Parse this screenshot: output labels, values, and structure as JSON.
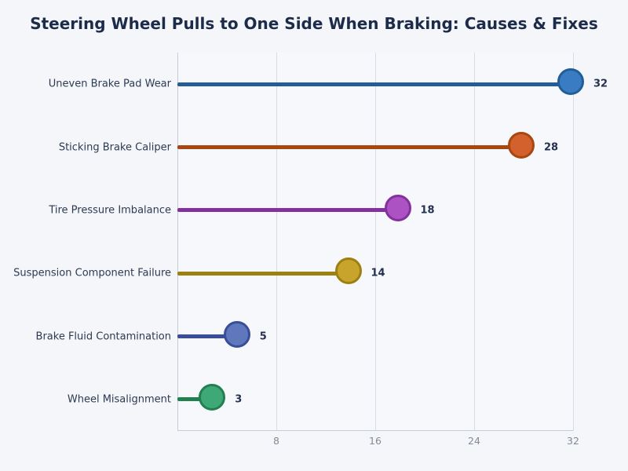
{
  "page": {
    "background": "#f4f6f9"
  },
  "chart_data": {
    "type": "lollipop",
    "orientation": "horizontal",
    "title": "Steering Wheel Pulls to One Side When Braking: Causes & Fixes",
    "categories": [
      "Uneven Brake Pad Wear",
      "Sticking Brake Caliper",
      "Tire Pressure Imbalance",
      "Suspension Component Failure",
      "Brake Fluid Contamination",
      "Wheel Misalignment"
    ],
    "values": [
      32,
      28,
      18,
      14,
      5,
      3
    ],
    "xlim": [
      0,
      32
    ],
    "xticks": [
      8,
      16,
      24,
      32
    ],
    "xlabel": "",
    "ylabel": "",
    "grid": "vertical-only",
    "legend": "none",
    "series_colors": [
      {
        "fill": "#3a7cc4",
        "line": "#235d98"
      },
      {
        "fill": "#d2612e",
        "line": "#a8470f"
      },
      {
        "fill": "#ac52c2",
        "line": "#8431a0"
      },
      {
        "fill": "#c8a42c",
        "line": "#9c8010"
      },
      {
        "fill": "#5f77bb",
        "line": "#3a4d9b"
      },
      {
        "fill": "#3fa877",
        "line": "#22804f"
      }
    ],
    "palette": {
      "page_background": "#f4f6f9",
      "plot_background": "#f7f8fb",
      "grid_color": "#d8dde6",
      "axis_color": "#c6ccd7",
      "title_color": "#1d2b4a",
      "category_label_color": "#2d3a52",
      "value_label_color": "#263150",
      "tick_label_color": "#828a99"
    }
  }
}
